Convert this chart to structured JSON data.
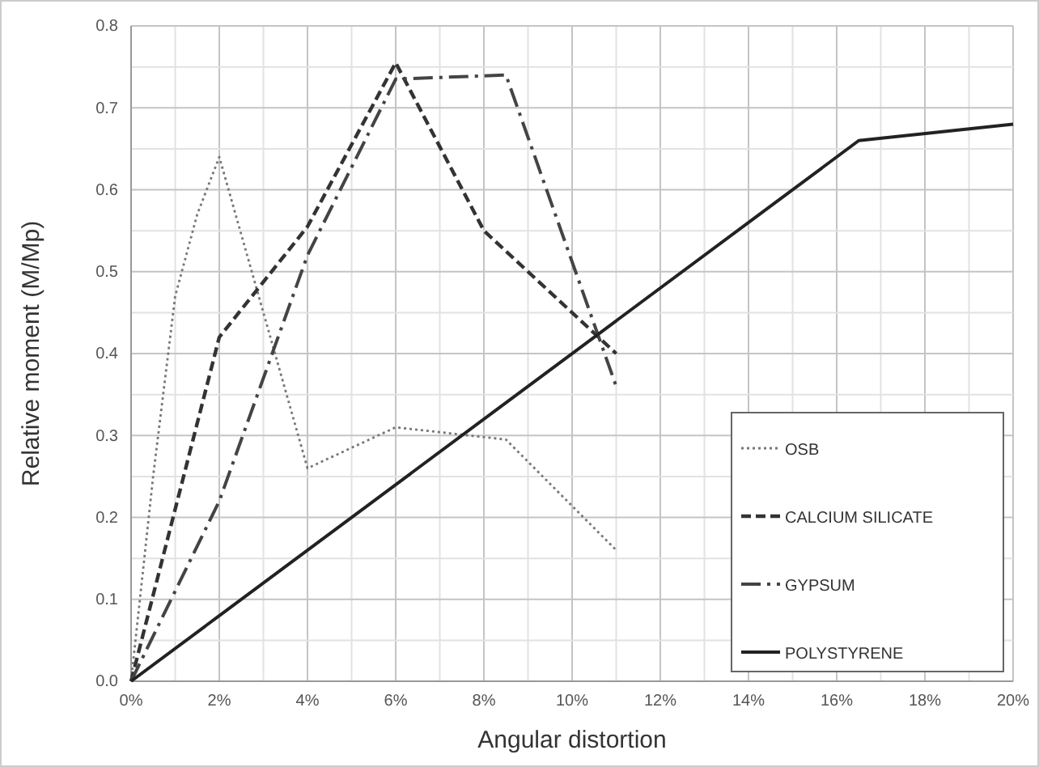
{
  "chart_data": {
    "type": "line",
    "xlabel": "Angular distortion",
    "ylabel": "Relative moment (M/Mp)",
    "xlim": [
      0,
      20
    ],
    "ylim": [
      0,
      0.8
    ],
    "xticks": [
      {
        "value": 0,
        "label": "0%"
      },
      {
        "value": 2,
        "label": "2%"
      },
      {
        "value": 4,
        "label": "4%"
      },
      {
        "value": 6,
        "label": "6%"
      },
      {
        "value": 8,
        "label": "8%"
      },
      {
        "value": 10,
        "label": "10%"
      },
      {
        "value": 12,
        "label": "12%"
      },
      {
        "value": 14,
        "label": "14%"
      },
      {
        "value": 16,
        "label": "16%"
      },
      {
        "value": 18,
        "label": "18%"
      },
      {
        "value": 20,
        "label": "20%"
      }
    ],
    "yticks": [
      {
        "value": 0,
        "label": "0.0"
      },
      0.1,
      0.2,
      0.3,
      0.4,
      0.5,
      0.6,
      0.7,
      0.8
    ],
    "grid": true,
    "legend": "bottom right",
    "marker": "none",
    "series": [
      {
        "name": "OSB",
        "color": "#777777",
        "line_style": "dotted",
        "x": [
          0,
          0.5,
          1,
          1.5,
          2,
          4,
          6,
          8.5,
          11
        ],
        "values": [
          0,
          0.25,
          0.47,
          0.57,
          0.64,
          0.26,
          0.31,
          0.295,
          0.16
        ]
      },
      {
        "name": "CALCIUM SILICATE",
        "color": "#333333",
        "line_style": "dashed",
        "x": [
          0,
          2,
          4,
          6,
          8,
          11
        ],
        "values": [
          0,
          0.42,
          0.555,
          0.755,
          0.55,
          0.4
        ]
      },
      {
        "name": "GYPSUM",
        "color": "#444444",
        "line_style": "dashdot",
        "x": [
          0,
          2,
          4,
          6,
          8.5,
          11
        ],
        "values": [
          0,
          0.22,
          0.52,
          0.735,
          0.74,
          0.36
        ]
      },
      {
        "name": "POLYSTYRENE",
        "color": "#222222",
        "line_style": "solid",
        "x": [
          0,
          16.5,
          20
        ],
        "values": [
          0,
          0.66,
          0.68
        ]
      }
    ]
  }
}
